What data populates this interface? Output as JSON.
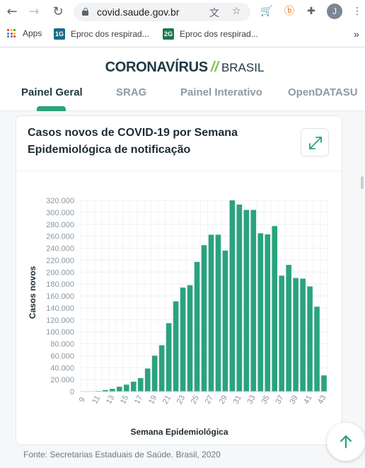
{
  "browser": {
    "url": "covid.saude.gov.br",
    "profile_initial": "J",
    "bookmarks": [
      {
        "label": "Apps"
      },
      {
        "label": "Eproc dos respirad...",
        "badge": "1G",
        "color": "#1b6b8a"
      },
      {
        "label": "Eproc dos respirad...",
        "badge": "2G",
        "color": "#1a7a4a"
      }
    ],
    "overflow": "»"
  },
  "site": {
    "brand_main": "CORONAVÍRUS",
    "brand_sep": "//",
    "brand_country": "BRASIL",
    "tabs": [
      {
        "label": "Painel Geral",
        "active": true
      },
      {
        "label": "SRAG",
        "active": false
      },
      {
        "label": "Painel Interativo",
        "active": false
      },
      {
        "label": "OpenDATASU",
        "active": false
      }
    ],
    "accent": "#2aa37e"
  },
  "card": {
    "title_line1": "Casos novos de COVID-19 por Semana",
    "title_line2": "Epidemiológica de notificação",
    "expand_icon": "expand-icon"
  },
  "source": "Fonte: Secretarias Estaduais de Saúde. Brasil, 2020",
  "chart_data": {
    "type": "bar",
    "xlabel": "Semana Epidemiológica",
    "ylabel": "Casos novos",
    "ylim": [
      0,
      320000
    ],
    "y_ticks": [
      "0",
      "20.000",
      "40.000",
      "60.000",
      "80.000",
      "100.000",
      "120.000",
      "140.000",
      "160.000",
      "180.000",
      "200.000",
      "220.000",
      "240.000",
      "260.000",
      "280.000",
      "300.000",
      "320.000"
    ],
    "x_tick_labels": [
      "9",
      "11",
      "13",
      "15",
      "17",
      "19",
      "21",
      "23",
      "25",
      "27",
      "29",
      "31",
      "33",
      "35",
      "37",
      "39",
      "41",
      "43"
    ],
    "categories": [
      "9",
      "10",
      "11",
      "12",
      "13",
      "14",
      "15",
      "16",
      "17",
      "18",
      "19",
      "20",
      "21",
      "22",
      "23",
      "24",
      "25",
      "26",
      "27",
      "28",
      "29",
      "30",
      "31",
      "32",
      "33",
      "34",
      "35",
      "36",
      "37",
      "38",
      "39",
      "40",
      "41",
      "42",
      "43"
    ],
    "values": [
      0,
      300,
      1000,
      2500,
      4500,
      8000,
      11500,
      16500,
      22500,
      38500,
      60000,
      77500,
      114500,
      151000,
      174000,
      178000,
      217000,
      245000,
      262500,
      262500,
      236000,
      320000,
      313000,
      304000,
      304000,
      265000,
      263000,
      277000,
      194000,
      212000,
      190000,
      189000,
      176000,
      142000,
      27000
    ],
    "bar_color": "#2aa37e",
    "grid": true
  }
}
